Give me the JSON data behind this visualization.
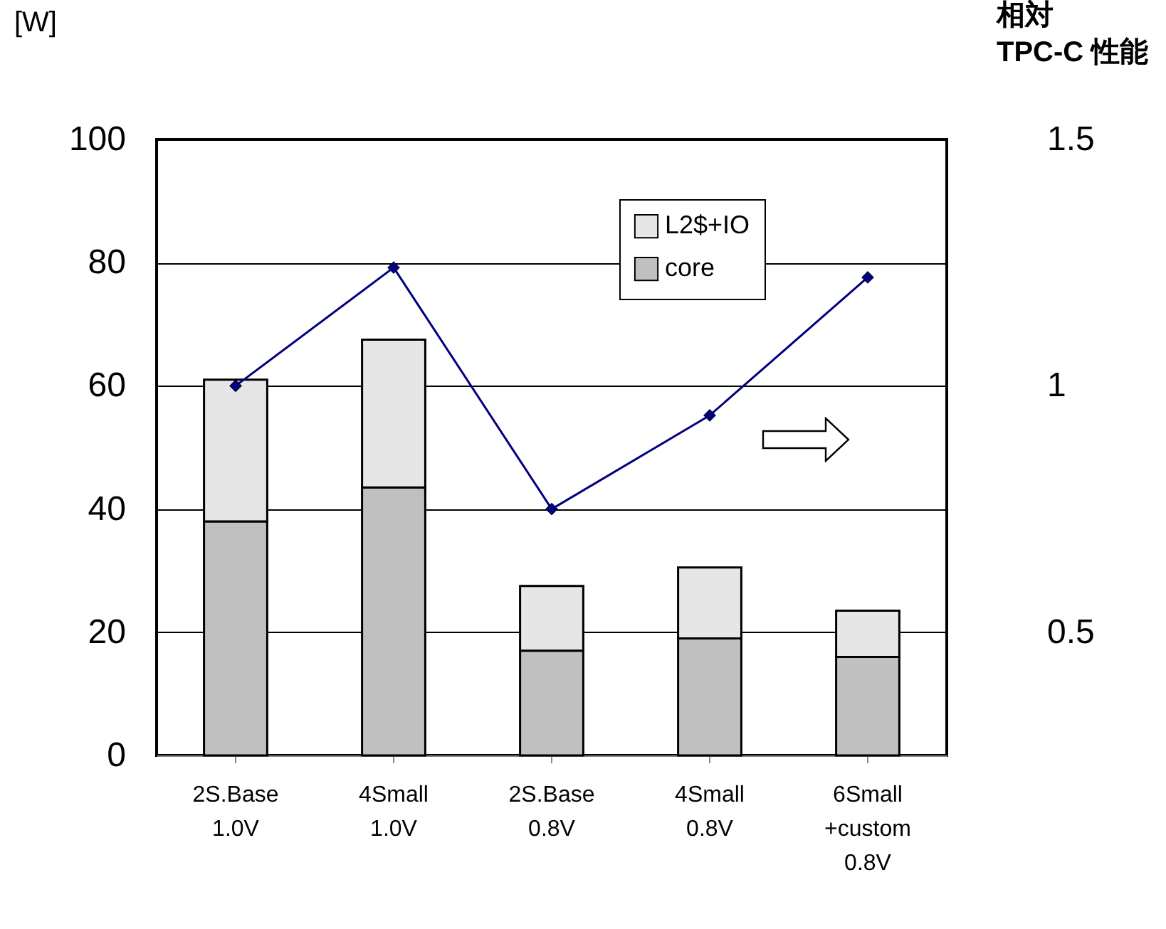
{
  "chart_data": {
    "type": "bar",
    "stacked": true,
    "categories": [
      "2S.Base\n1.0V",
      "4Small\n1.0V",
      "2S.Base\n0.8V",
      "4Small\n0.8V",
      "6Small\n+custom\n0.8V"
    ],
    "series": [
      {
        "name": "core",
        "color": "#c0c0c0",
        "values": [
          38,
          43.5,
          17,
          19,
          16
        ]
      },
      {
        "name": "L2$+IO",
        "color": "#e6e6e6",
        "values": [
          23,
          24,
          10.5,
          11.5,
          7.5
        ]
      },
      {
        "type": "line",
        "axis": "y2",
        "color": "#000080",
        "marker": "diamond",
        "values": [
          1.0,
          1.24,
          0.75,
          0.94,
          1.22
        ]
      }
    ],
    "ylabel": "[W]",
    "y2label": "相対\nTPC-C 性能",
    "ylim": [
      0,
      100
    ],
    "yticks": [
      0,
      20,
      40,
      60,
      80,
      100
    ],
    "y2lim": [
      0.25,
      1.5
    ],
    "y2ticks": [
      0.5,
      1,
      1.5
    ],
    "grid": "y",
    "legend": "top right"
  }
}
